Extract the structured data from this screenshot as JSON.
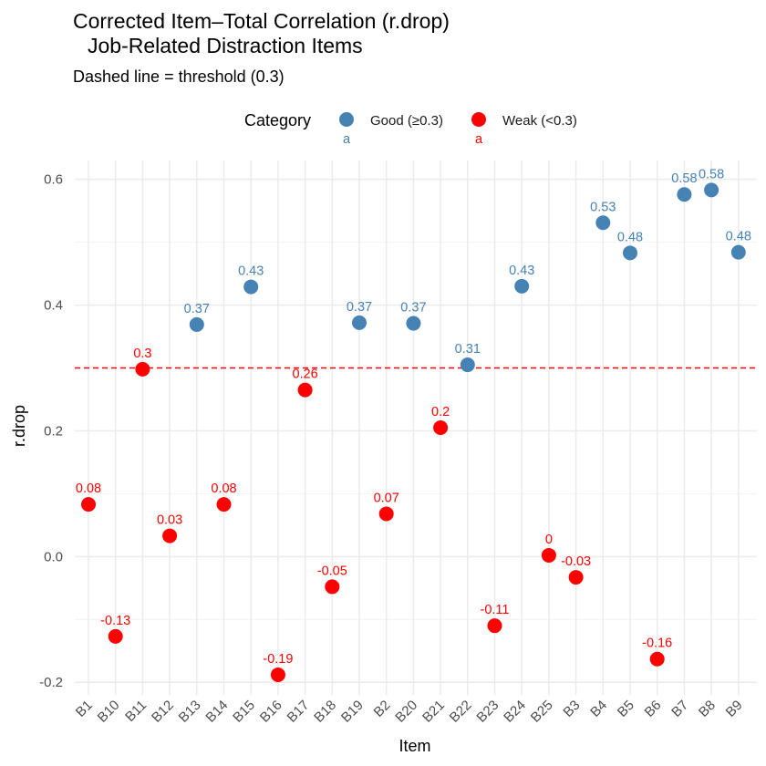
{
  "chart_data": {
    "type": "scatter",
    "title_line1": "Corrected Item–Total Correlation (r.drop)",
    "title_line2": "Job-Related Distraction Items",
    "subtitle": "Dashed line = threshold (0.3)",
    "xlabel": "Item",
    "ylabel": "r.drop",
    "ylim": [
      -0.22,
      0.63
    ],
    "yticks": [
      -0.2,
      0.0,
      0.2,
      0.4,
      0.6
    ],
    "ytick_labels": [
      "-0.2",
      "0.0",
      "0.2",
      "0.4",
      "0.6"
    ],
    "threshold": 0.3,
    "threshold_color": "#ee0000",
    "grid": true,
    "legend": {
      "title": "Category",
      "position": "top",
      "entries": [
        {
          "label": "Good (≥0.3)",
          "color": "#4682b4",
          "key_text": "a"
        },
        {
          "label": "Weak (<0.3)",
          "color": "#ff0000",
          "key_text": "a"
        }
      ]
    },
    "categories": [
      "B1",
      "B10",
      "B11",
      "B12",
      "B13",
      "B14",
      "B15",
      "B16",
      "B17",
      "B18",
      "B19",
      "B2",
      "B20",
      "B21",
      "B22",
      "B23",
      "B24",
      "B25",
      "B3",
      "B4",
      "B5",
      "B6",
      "B7",
      "B8",
      "B9"
    ],
    "values": [
      0.083,
      -0.127,
      0.298,
      0.033,
      0.369,
      0.083,
      0.429,
      -0.188,
      0.265,
      -0.048,
      0.372,
      0.068,
      0.371,
      0.205,
      0.305,
      -0.11,
      0.43,
      0.002,
      -0.033,
      0.531,
      0.483,
      -0.163,
      0.576,
      0.583,
      0.484
    ],
    "labels": [
      "0.08",
      "-0.13",
      "0.3",
      "0.03",
      "0.37",
      "0.08",
      "0.43",
      "-0.19",
      "0.26",
      "-0.05",
      "0.37",
      "0.07",
      "0.37",
      "0.2",
      "0.31",
      "-0.11",
      "0.43",
      "0",
      "-0.03",
      "0.53",
      "0.48",
      "-0.16",
      "0.58",
      "0.58",
      "0.48"
    ],
    "category_of_point": [
      "Weak",
      "Weak",
      "Weak",
      "Weak",
      "Good",
      "Weak",
      "Good",
      "Weak",
      "Weak",
      "Weak",
      "Good",
      "Weak",
      "Good",
      "Weak",
      "Good",
      "Weak",
      "Good",
      "Weak",
      "Weak",
      "Good",
      "Good",
      "Weak",
      "Good",
      "Good",
      "Good"
    ],
    "colors": {
      "Good": "#4682b4",
      "Weak": "#ff0000"
    }
  }
}
